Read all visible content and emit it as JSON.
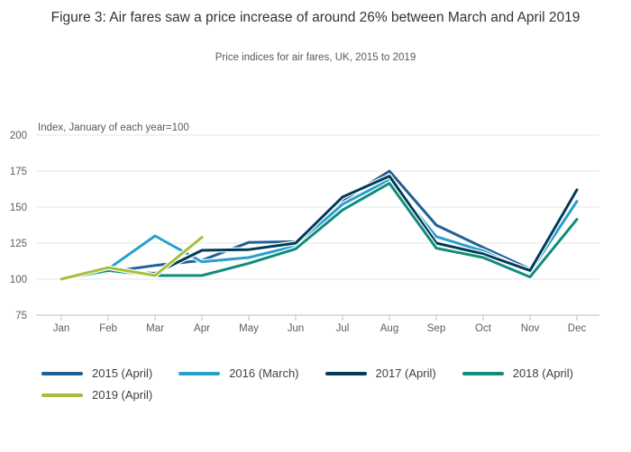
{
  "header": {
    "title": "Figure 3: Air fares saw a price increase of around 26% between March and April 2019",
    "subtitle": "Price indices for air fares, UK, 2015 to 2019"
  },
  "chart_data": {
    "type": "line",
    "axis_note": "Index, January of each year=100",
    "x": [
      "Jan",
      "Feb",
      "Mar",
      "Apr",
      "May",
      "Jun",
      "Jul",
      "Aug",
      "Sep",
      "Oct",
      "Nov",
      "Dec"
    ],
    "yticks": [
      200,
      175,
      150,
      125,
      100,
      75
    ],
    "ylim": [
      75,
      200
    ],
    "grid": true,
    "legend_position": "bottom",
    "series": [
      {
        "name": "2015 (April)",
        "color": "#206095",
        "values": [
          100,
          105,
          109.5,
          113,
          125.5,
          126,
          154.5,
          175,
          137.5,
          122,
          107,
          154
        ]
      },
      {
        "name": "2016 (March)",
        "color": "#27A0CC",
        "values": [
          100,
          107,
          130,
          112,
          115,
          123,
          152,
          169,
          129.5,
          119.5,
          105,
          154
        ]
      },
      {
        "name": "2017 (April)",
        "color": "#003C57",
        "values": [
          100,
          106,
          104,
          120,
          120.5,
          125,
          157,
          171.5,
          125,
          117.5,
          106,
          162
        ]
      },
      {
        "name": "2018 (April)",
        "color": "#118C7B",
        "values": [
          100,
          106,
          102.5,
          102.5,
          111,
          121,
          148,
          166.5,
          121.5,
          115,
          101.5,
          141.5
        ]
      },
      {
        "name": "2019 (April)",
        "color": "#A8BD3A",
        "values": [
          100,
          108,
          102.5,
          129
        ]
      }
    ],
    "colors": {
      "gridline": "#e6e6e6",
      "axis": "#b3c2ca",
      "tick_text": "#5d5d5d"
    }
  }
}
